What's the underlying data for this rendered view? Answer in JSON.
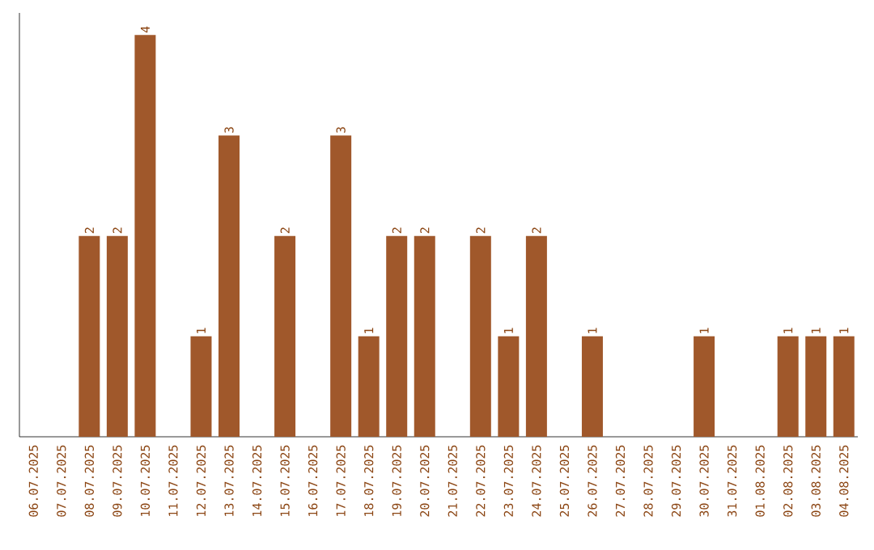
{
  "chart_data": {
    "type": "bar",
    "categories": [
      "06.07.2025",
      "07.07.2025",
      "08.07.2025",
      "09.07.2025",
      "10.07.2025",
      "11.07.2025",
      "12.07.2025",
      "13.07.2025",
      "14.07.2025",
      "15.07.2025",
      "16.07.2025",
      "17.07.2025",
      "18.07.2025",
      "19.07.2025",
      "20.07.2025",
      "21.07.2025",
      "22.07.2025",
      "23.07.2025",
      "24.07.2025",
      "25.07.2025",
      "26.07.2025",
      "27.07.2025",
      "28.07.2025",
      "29.07.2025",
      "30.07.2025",
      "31.07.2025",
      "01.08.2025",
      "02.08.2025",
      "03.08.2025",
      "04.08.2025"
    ],
    "values": [
      0,
      0,
      2,
      2,
      4,
      0,
      1,
      3,
      0,
      2,
      0,
      3,
      1,
      2,
      2,
      0,
      2,
      1,
      2,
      0,
      1,
      0,
      0,
      0,
      1,
      0,
      0,
      1,
      1,
      1
    ],
    "value_labels": [
      null,
      null,
      "2",
      "2",
      "4",
      null,
      "1",
      "3",
      null,
      "2",
      null,
      "3",
      "1",
      "2",
      "2",
      null,
      "2",
      "1",
      "2",
      null,
      "1",
      null,
      null,
      null,
      "1",
      null,
      null,
      "1",
      "1",
      "1"
    ],
    "color": "#a0582b",
    "tick_labels": "x"
  }
}
